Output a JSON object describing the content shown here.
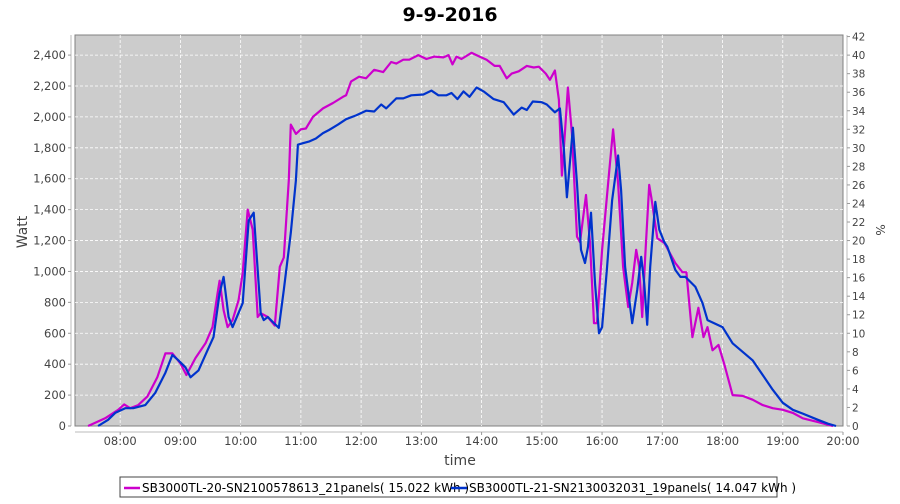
{
  "chart_data": {
    "type": "line",
    "title": "9-9-2016",
    "xlabel": "time",
    "ylabel": "Watt",
    "y2label": "%",
    "xlim": [
      "07:15",
      "20:00"
    ],
    "ylim": [
      0,
      2530
    ],
    "y2lim": [
      0,
      42.17
    ],
    "grid": true,
    "legend_position": "bottom",
    "x_ticks": [
      "08:00",
      "09:00",
      "10:00",
      "11:00",
      "12:00",
      "13:00",
      "14:00",
      "15:00",
      "16:00",
      "17:00",
      "18:00",
      "19:00",
      "20:00"
    ],
    "y_ticks": [
      {
        "v": 0,
        "label": "0"
      },
      {
        "v": 200,
        "label": "200"
      },
      {
        "v": 400,
        "label": "400"
      },
      {
        "v": 600,
        "label": "600"
      },
      {
        "v": 800,
        "label": "800"
      },
      {
        "v": 1000,
        "label": "1,000"
      },
      {
        "v": 1200,
        "label": "1,200"
      },
      {
        "v": 1400,
        "label": "1,400"
      },
      {
        "v": 1600,
        "label": "1,600"
      },
      {
        "v": 1800,
        "label": "1,800"
      },
      {
        "v": 2000,
        "label": "2,000"
      },
      {
        "v": 2200,
        "label": "2,200"
      },
      {
        "v": 2400,
        "label": "2,400"
      }
    ],
    "y2_ticks": [
      "0",
      "2",
      "4",
      "6",
      "8",
      "10",
      "12",
      "14",
      "16",
      "18",
      "20",
      "22",
      "24",
      "26",
      "28",
      "30",
      "32",
      "34",
      "36",
      "38",
      "40",
      "42"
    ],
    "series": [
      {
        "name": "SB3000TL-20-SN2100578613_21panels( 15.022 kWh )",
        "color": "#cc00cc",
        "points": [
          [
            "07:28",
            0
          ],
          [
            "07:45",
            50
          ],
          [
            "07:58",
            105
          ],
          [
            "08:04",
            140
          ],
          [
            "08:10",
            115
          ],
          [
            "08:18",
            135
          ],
          [
            "08:27",
            190
          ],
          [
            "08:37",
            315
          ],
          [
            "08:45",
            470
          ],
          [
            "08:52",
            470
          ],
          [
            "09:00",
            405
          ],
          [
            "09:06",
            330
          ],
          [
            "09:15",
            440
          ],
          [
            "09:25",
            535
          ],
          [
            "09:32",
            640
          ],
          [
            "09:37",
            860
          ],
          [
            "09:39",
            940
          ],
          [
            "09:43",
            750
          ],
          [
            "09:47",
            640
          ],
          [
            "09:52",
            685
          ],
          [
            "09:58",
            815
          ],
          [
            "10:02",
            990
          ],
          [
            "10:07",
            1400
          ],
          [
            "10:12",
            1270
          ],
          [
            "10:17",
            705
          ],
          [
            "10:20",
            730
          ],
          [
            "10:27",
            705
          ],
          [
            "10:34",
            650
          ],
          [
            "10:39",
            1030
          ],
          [
            "10:43",
            1090
          ],
          [
            "10:48",
            1590
          ],
          [
            "10:50",
            1950
          ],
          [
            "10:55",
            1890
          ],
          [
            "11:00",
            1920
          ],
          [
            "11:05",
            1925
          ],
          [
            "11:12",
            2000
          ],
          [
            "11:22",
            2055
          ],
          [
            "11:32",
            2090
          ],
          [
            "11:42",
            2130
          ],
          [
            "11:45",
            2140
          ],
          [
            "11:50",
            2230
          ],
          [
            "11:58",
            2260
          ],
          [
            "12:05",
            2250
          ],
          [
            "12:13",
            2305
          ],
          [
            "12:22",
            2290
          ],
          [
            "12:30",
            2355
          ],
          [
            "12:35",
            2345
          ],
          [
            "12:42",
            2370
          ],
          [
            "12:48",
            2370
          ],
          [
            "12:57",
            2400
          ],
          [
            "13:05",
            2375
          ],
          [
            "13:13",
            2390
          ],
          [
            "13:22",
            2385
          ],
          [
            "13:27",
            2400
          ],
          [
            "13:31",
            2340
          ],
          [
            "13:35",
            2390
          ],
          [
            "13:40",
            2375
          ],
          [
            "13:50",
            2415
          ],
          [
            "13:58",
            2390
          ],
          [
            "14:05",
            2370
          ],
          [
            "14:13",
            2330
          ],
          [
            "14:18",
            2330
          ],
          [
            "14:25",
            2250
          ],
          [
            "14:30",
            2280
          ],
          [
            "14:37",
            2295
          ],
          [
            "14:45",
            2330
          ],
          [
            "14:52",
            2320
          ],
          [
            "14:57",
            2325
          ],
          [
            "15:04",
            2280
          ],
          [
            "15:08",
            2240
          ],
          [
            "15:13",
            2300
          ],
          [
            "15:17",
            2110
          ],
          [
            "15:20",
            1620
          ],
          [
            "15:23",
            1895
          ],
          [
            "15:26",
            2190
          ],
          [
            "15:30",
            1895
          ],
          [
            "15:35",
            1225
          ],
          [
            "15:38",
            1190
          ],
          [
            "15:44",
            1495
          ],
          [
            "15:48",
            1185
          ],
          [
            "15:52",
            665
          ],
          [
            "15:55",
            665
          ],
          [
            "16:00",
            1140
          ],
          [
            "16:07",
            1640
          ],
          [
            "16:11",
            1920
          ],
          [
            "16:16",
            1570
          ],
          [
            "16:21",
            1030
          ],
          [
            "16:26",
            770
          ],
          [
            "16:30",
            925
          ],
          [
            "16:34",
            1140
          ],
          [
            "16:37",
            1030
          ],
          [
            "16:40",
            705
          ],
          [
            "16:43",
            1095
          ],
          [
            "16:47",
            1560
          ],
          [
            "16:49",
            1480
          ],
          [
            "16:55",
            1215
          ],
          [
            "17:02",
            1185
          ],
          [
            "17:13",
            1055
          ],
          [
            "17:20",
            995
          ],
          [
            "17:24",
            995
          ],
          [
            "17:30",
            575
          ],
          [
            "17:36",
            765
          ],
          [
            "17:41",
            575
          ],
          [
            "17:45",
            640
          ],
          [
            "17:50",
            490
          ],
          [
            "17:56",
            525
          ],
          [
            "18:02",
            395
          ],
          [
            "18:10",
            200
          ],
          [
            "18:20",
            195
          ],
          [
            "18:30",
            170
          ],
          [
            "18:40",
            135
          ],
          [
            "18:50",
            115
          ],
          [
            "19:00",
            105
          ],
          [
            "19:10",
            85
          ],
          [
            "19:20",
            50
          ],
          [
            "19:35",
            25
          ],
          [
            "19:50",
            0
          ]
        ]
      },
      {
        "name": "SB3000TL-21-SN2130032031_19panels( 14.047 kWh )",
        "color": "#0033cc",
        "points": [
          [
            "07:38",
            0
          ],
          [
            "07:48",
            40
          ],
          [
            "07:55",
            85
          ],
          [
            "08:05",
            115
          ],
          [
            "08:13",
            115
          ],
          [
            "08:25",
            135
          ],
          [
            "08:35",
            215
          ],
          [
            "08:45",
            345
          ],
          [
            "08:52",
            460
          ],
          [
            "08:58",
            425
          ],
          [
            "09:05",
            380
          ],
          [
            "09:10",
            315
          ],
          [
            "09:18",
            360
          ],
          [
            "09:27",
            490
          ],
          [
            "09:33",
            575
          ],
          [
            "09:39",
            860
          ],
          [
            "09:43",
            965
          ],
          [
            "09:48",
            705
          ],
          [
            "09:52",
            640
          ],
          [
            "10:02",
            795
          ],
          [
            "10:08",
            1330
          ],
          [
            "10:13",
            1380
          ],
          [
            "10:20",
            730
          ],
          [
            "10:23",
            685
          ],
          [
            "10:27",
            705
          ],
          [
            "10:38",
            635
          ],
          [
            "10:43",
            880
          ],
          [
            "10:50",
            1250
          ],
          [
            "10:55",
            1590
          ],
          [
            "10:57",
            1820
          ],
          [
            "11:02",
            1830
          ],
          [
            "11:08",
            1840
          ],
          [
            "11:15",
            1860
          ],
          [
            "11:22",
            1895
          ],
          [
            "11:28",
            1915
          ],
          [
            "11:37",
            1950
          ],
          [
            "11:45",
            1985
          ],
          [
            "11:55",
            2010
          ],
          [
            "12:05",
            2040
          ],
          [
            "12:13",
            2035
          ],
          [
            "12:20",
            2080
          ],
          [
            "12:25",
            2055
          ],
          [
            "12:35",
            2120
          ],
          [
            "12:42",
            2120
          ],
          [
            "12:50",
            2140
          ],
          [
            "13:02",
            2145
          ],
          [
            "13:10",
            2170
          ],
          [
            "13:17",
            2140
          ],
          [
            "13:25",
            2140
          ],
          [
            "13:30",
            2155
          ],
          [
            "13:36",
            2115
          ],
          [
            "13:42",
            2165
          ],
          [
            "13:48",
            2130
          ],
          [
            "13:55",
            2190
          ],
          [
            "14:02",
            2165
          ],
          [
            "14:12",
            2115
          ],
          [
            "14:22",
            2095
          ],
          [
            "14:32",
            2015
          ],
          [
            "14:40",
            2060
          ],
          [
            "14:45",
            2045
          ],
          [
            "14:51",
            2100
          ],
          [
            "15:00",
            2095
          ],
          [
            "15:05",
            2080
          ],
          [
            "15:13",
            2030
          ],
          [
            "15:18",
            2055
          ],
          [
            "15:22",
            1785
          ],
          [
            "15:25",
            1480
          ],
          [
            "15:31",
            1930
          ],
          [
            "15:35",
            1570
          ],
          [
            "15:39",
            1140
          ],
          [
            "15:43",
            1055
          ],
          [
            "15:46",
            1160
          ],
          [
            "15:49",
            1380
          ],
          [
            "15:53",
            925
          ],
          [
            "15:57",
            600
          ],
          [
            "16:00",
            640
          ],
          [
            "16:05",
            1030
          ],
          [
            "16:10",
            1460
          ],
          [
            "16:16",
            1750
          ],
          [
            "16:19",
            1525
          ],
          [
            "16:23",
            1030
          ],
          [
            "16:30",
            665
          ],
          [
            "16:35",
            880
          ],
          [
            "16:39",
            1095
          ],
          [
            "16:42",
            925
          ],
          [
            "16:45",
            655
          ],
          [
            "16:48",
            1030
          ],
          [
            "16:53",
            1450
          ],
          [
            "16:57",
            1270
          ],
          [
            "17:02",
            1190
          ],
          [
            "17:05",
            1160
          ],
          [
            "17:13",
            1010
          ],
          [
            "17:18",
            965
          ],
          [
            "17:23",
            965
          ],
          [
            "17:33",
            900
          ],
          [
            "17:40",
            795
          ],
          [
            "17:45",
            685
          ],
          [
            "18:00",
            640
          ],
          [
            "18:10",
            535
          ],
          [
            "18:20",
            480
          ],
          [
            "18:30",
            425
          ],
          [
            "18:40",
            330
          ],
          [
            "18:50",
            235
          ],
          [
            "19:00",
            150
          ],
          [
            "19:10",
            105
          ],
          [
            "19:20",
            80
          ],
          [
            "19:35",
            40
          ],
          [
            "19:45",
            15
          ],
          [
            "19:53",
            0
          ]
        ]
      }
    ]
  }
}
